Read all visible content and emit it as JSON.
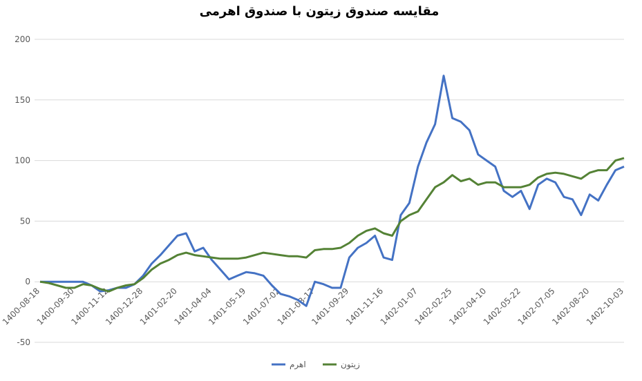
{
  "chart_data": {
    "type": "line",
    "title": "مقایسه صندوق زیتون با صندوق اهرمی",
    "categories": [
      "1400-08-18",
      null,
      null,
      null,
      "1400-09-30",
      null,
      null,
      null,
      "1400-11-12",
      null,
      null,
      null,
      "1400-12-28",
      null,
      null,
      null,
      "1401-02-20",
      null,
      null,
      null,
      "1401-04-04",
      null,
      null,
      null,
      "1401-05-19",
      null,
      null,
      null,
      "1401-07-02",
      null,
      null,
      null,
      "1401-08-17",
      null,
      null,
      null,
      "1401-09-29",
      null,
      null,
      null,
      "1401-11-16",
      null,
      null,
      null,
      "1402-01-07",
      null,
      null,
      null,
      "1402-02-25",
      null,
      null,
      null,
      "1402-04-10",
      null,
      null,
      null,
      "1402-05-22",
      null,
      null,
      null,
      "1402-07-05",
      null,
      null,
      null,
      "1402-08-20",
      null,
      null,
      null,
      "1402-10-03"
    ],
    "series": [
      {
        "name": "اهرم",
        "color": "#4472c4",
        "values": [
          0,
          0,
          0,
          0,
          0,
          0,
          -3,
          -8,
          -7,
          -5,
          -5,
          -2,
          5,
          15,
          22,
          30,
          38,
          40,
          25,
          28,
          18,
          10,
          2,
          5,
          8,
          7,
          5,
          -3,
          -10,
          -12,
          -15,
          -20,
          0,
          -2,
          -5,
          -5,
          20,
          28,
          32,
          38,
          20,
          18,
          55,
          65,
          95,
          115,
          130,
          170,
          135,
          132,
          125,
          105,
          100,
          95,
          75,
          70,
          75,
          60,
          80,
          85,
          82,
          70,
          68,
          55,
          72,
          67,
          80,
          92,
          95
        ]
      },
      {
        "name": "زیتون",
        "color": "#548235",
        "values": [
          0,
          -1,
          -3,
          -5,
          -5,
          -2,
          -3,
          -6,
          -8,
          -5,
          -3,
          -2,
          3,
          10,
          15,
          18,
          22,
          24,
          22,
          21,
          20,
          19,
          19,
          19,
          20,
          22,
          24,
          23,
          22,
          21,
          21,
          20,
          26,
          27,
          27,
          28,
          32,
          38,
          42,
          44,
          40,
          38,
          50,
          55,
          58,
          68,
          78,
          82,
          88,
          83,
          85,
          80,
          82,
          82,
          78,
          78,
          78,
          80,
          86,
          89,
          90,
          89,
          87,
          85,
          90,
          92,
          92,
          100,
          102
        ]
      }
    ],
    "ylim": [
      -50,
      200
    ],
    "yticks": [
      -50,
      0,
      50,
      100,
      150,
      200
    ],
    "grid": true
  }
}
